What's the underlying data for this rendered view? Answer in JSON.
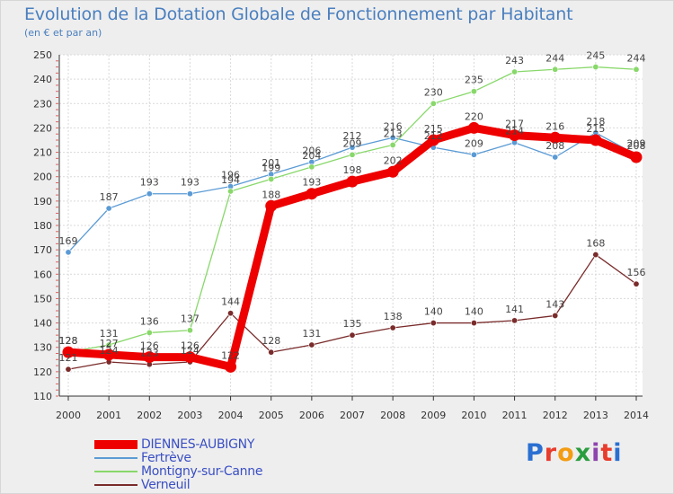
{
  "chart_data": {
    "type": "line",
    "title": "Evolution de la Dotation Globale de Fonctionnement par Habitant",
    "subtitle": "(en € et par an)",
    "xlabel": "",
    "ylabel": "",
    "ylim": [
      110,
      250
    ],
    "yticks": [
      110,
      120,
      130,
      140,
      150,
      160,
      170,
      180,
      190,
      200,
      210,
      220,
      230,
      240,
      250
    ],
    "grid": true,
    "legend_position": "bottom-left",
    "categories": [
      "2000",
      "2001",
      "2002",
      "2003",
      "2004",
      "2005",
      "2006",
      "2007",
      "2008",
      "2009",
      "2010",
      "2011",
      "2012",
      "2013",
      "2014"
    ],
    "series": [
      {
        "name": "Fertrève",
        "color": "#5b9bd5",
        "values": [
          169,
          187,
          193,
          193,
          196,
          201,
          206,
          212,
          216,
          212,
          209,
          214,
          208,
          218,
          209
        ]
      },
      {
        "name": "Montigny-sur-Canne",
        "color": "#88d86a",
        "values": [
          128,
          131,
          136,
          137,
          194,
          199,
          204,
          209,
          213,
          230,
          235,
          243,
          244,
          245,
          244
        ]
      },
      {
        "name": "Verneuil",
        "color": "#7a2b2b",
        "values": [
          121,
          124,
          123,
          124,
          144,
          128,
          131,
          135,
          138,
          140,
          140,
          141,
          143,
          168,
          156
        ]
      },
      {
        "name": "DIENNES-AUBIGNY",
        "color": "#ee0000",
        "values": [
          128,
          127,
          126,
          126,
          122,
          188,
          193,
          198,
          202,
          215,
          220,
          217,
          216,
          215,
          208
        ]
      }
    ]
  },
  "legend": {
    "items": [
      {
        "name": "DIENNES-AUBIGNY",
        "color": "#ee0000"
      },
      {
        "name": "Fertrève",
        "color": "#5b9bd5"
      },
      {
        "name": "Montigny-sur-Canne",
        "color": "#88d86a"
      },
      {
        "name": "Verneuil",
        "color": "#7a2b2b"
      }
    ]
  },
  "brand": {
    "text": "Proxiti",
    "colors": [
      "#2a6fd1",
      "#e83c2c",
      "#f39c12",
      "#2a9d3f",
      "#8e44ad",
      "#e83c2c",
      "#2a6fd1"
    ]
  }
}
